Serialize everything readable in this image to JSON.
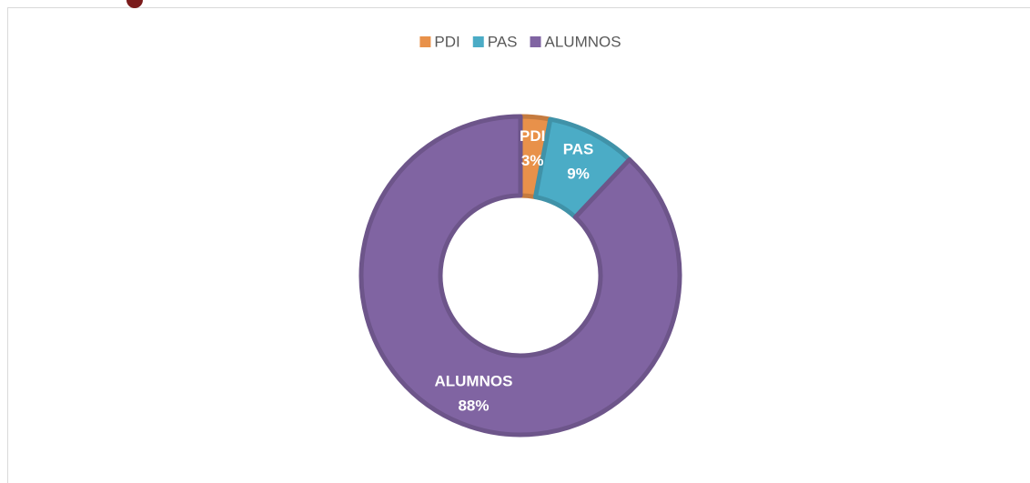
{
  "chart_data": {
    "type": "donut",
    "categories": [
      "PDI",
      "PAS",
      "ALUMNOS"
    ],
    "values": [
      3,
      9,
      88
    ],
    "value_labels": [
      "3%",
      "9%",
      "88%"
    ],
    "colors": [
      "#e8914a",
      "#4bacc6",
      "#8064a2"
    ],
    "legend": "top"
  }
}
